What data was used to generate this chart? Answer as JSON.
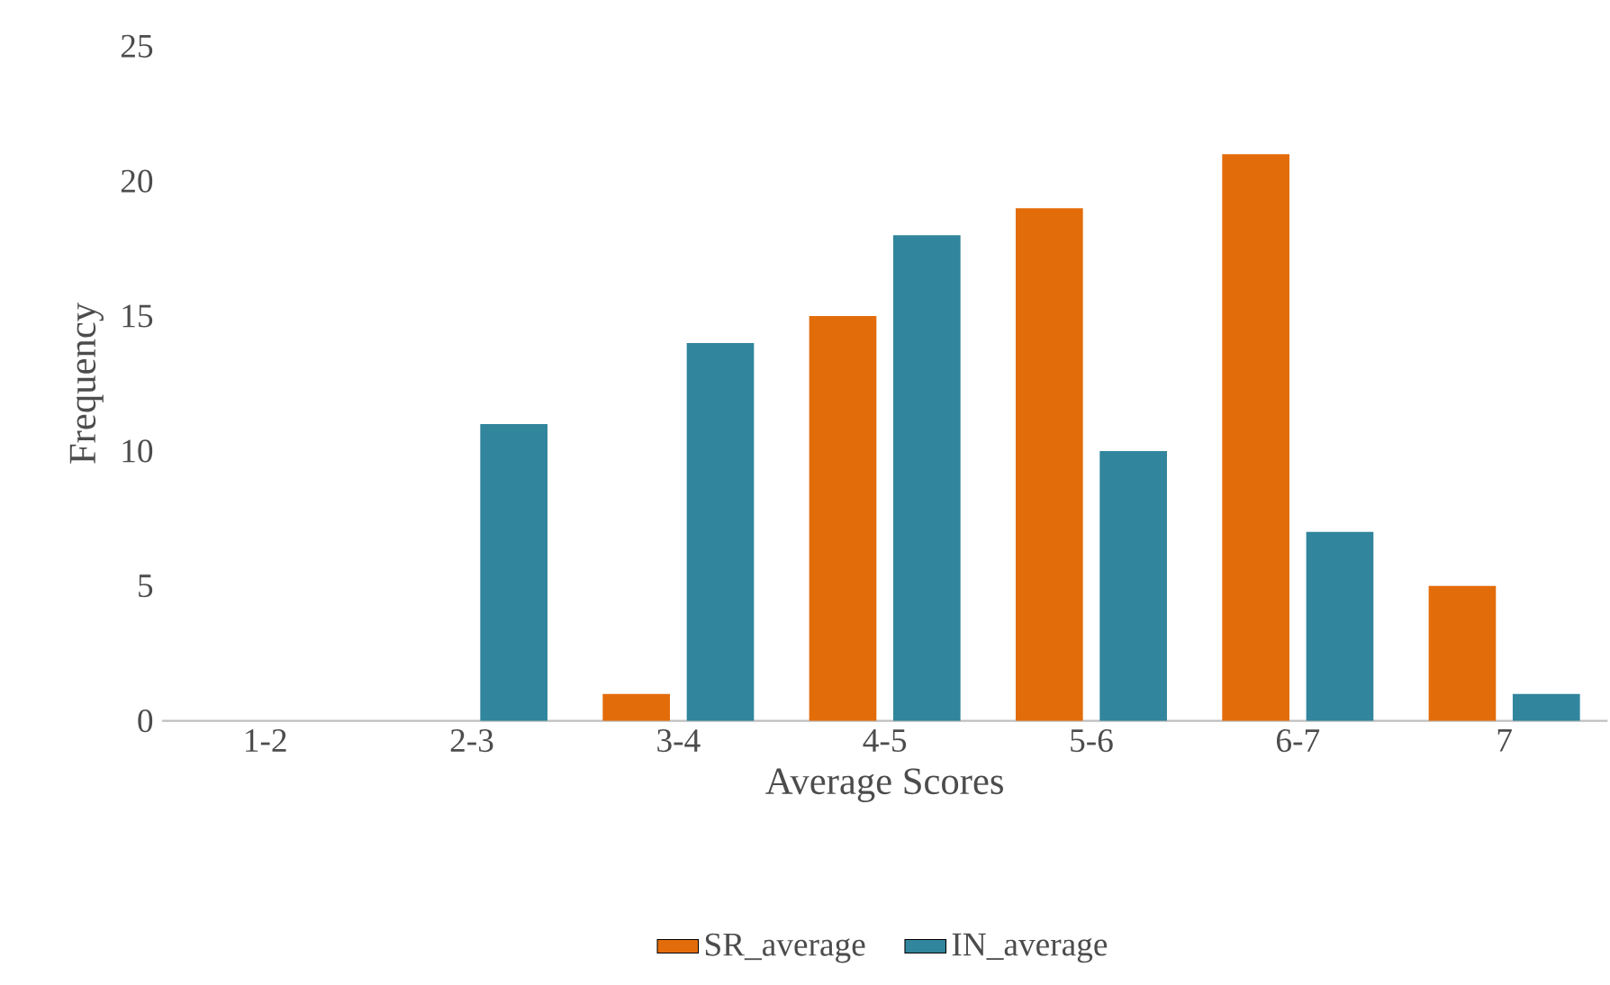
{
  "chart_data": {
    "type": "bar",
    "xlabel": "Average Scores",
    "ylabel": "Frequency",
    "categories": [
      "1-2",
      "2-3",
      "3-4",
      "4-5",
      "5-6",
      "6-7",
      "7"
    ],
    "series": [
      {
        "name": "SR_average",
        "color": "#e36c0a",
        "values": [
          0,
          0,
          1,
          15,
          19,
          21,
          5
        ]
      },
      {
        "name": "IN_average",
        "color": "#31859c",
        "values": [
          0,
          11,
          14,
          18,
          10,
          7,
          1
        ]
      }
    ],
    "ylim": [
      0,
      25
    ],
    "yticks": [
      0,
      5,
      10,
      15,
      20,
      25
    ],
    "grid": false,
    "legend": "bottom"
  }
}
